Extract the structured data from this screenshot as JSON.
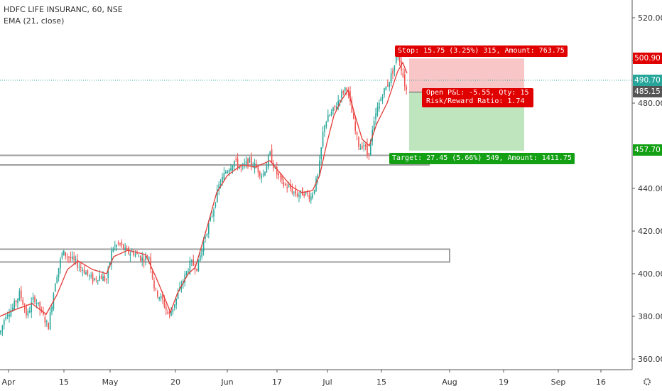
{
  "legend": {
    "symbol": "HDFC LIFE INSURANC, 60, NSE",
    "indicator": "EMA (21, close)"
  },
  "price_tags": {
    "stop": "500.90",
    "last_close": "490.70",
    "entry": "485.15",
    "target": "457.70"
  },
  "position_labels": {
    "stop": "Stop: 15.75 (3.25%) 315, Amount: 763.75",
    "pnl": "Open P&L: -5.55, Qty: 15",
    "rr": "Risk/Reward Ratio: 1.74",
    "target": "Target: 27.45 (5.66%) 549, Amount: 1411.75"
  },
  "colors": {
    "up": "#26a69a",
    "down": "#ef5350",
    "ema": "#e53935",
    "stop_zone": "#f8c6c6",
    "target_zone": "#bfe5bf",
    "label_red": "#e00000",
    "label_green": "#14a014",
    "dotted_line": "#26a69a"
  },
  "chart_data": {
    "type": "candlestick",
    "title": "HDFC LIFE INSURANC, 60, NSE",
    "ylim": [
      352,
      524
    ],
    "y_ticks": [
      360,
      380,
      400,
      420,
      440,
      480,
      500,
      520
    ],
    "x_tick_labels": [
      "Apr",
      "15",
      "May",
      "20",
      "Jun",
      "17",
      "Jul",
      "15",
      "Aug",
      "19",
      "Sep",
      "16"
    ],
    "grid": false,
    "ema_period": 21,
    "ema_path": [
      [
        0,
        380
      ],
      [
        20,
        383
      ],
      [
        45,
        386
      ],
      [
        65,
        381
      ],
      [
        80,
        390
      ],
      [
        95,
        402
      ],
      [
        110,
        406
      ],
      [
        130,
        402
      ],
      [
        150,
        400
      ],
      [
        160,
        408
      ],
      [
        180,
        411
      ],
      [
        205,
        409
      ],
      [
        220,
        398
      ],
      [
        235,
        386
      ],
      [
        240,
        382
      ],
      [
        250,
        391
      ],
      [
        265,
        400
      ],
      [
        275,
        403
      ],
      [
        290,
        420
      ],
      [
        305,
        438
      ],
      [
        320,
        446
      ],
      [
        340,
        451
      ],
      [
        360,
        450
      ],
      [
        380,
        453
      ],
      [
        395,
        447
      ],
      [
        410,
        441
      ],
      [
        425,
        438
      ],
      [
        440,
        439
      ],
      [
        450,
        446
      ],
      [
        460,
        461
      ],
      [
        470,
        474
      ],
      [
        480,
        481
      ],
      [
        490,
        486
      ],
      [
        500,
        474
      ],
      [
        510,
        463
      ],
      [
        520,
        460
      ],
      [
        530,
        470
      ],
      [
        545,
        480
      ],
      [
        560,
        495
      ],
      [
        567,
        499
      ],
      [
        573,
        494
      ]
    ],
    "price_path": [
      [
        0,
        372
      ],
      [
        8,
        381
      ],
      [
        18,
        384
      ],
      [
        28,
        391
      ],
      [
        38,
        380
      ],
      [
        48,
        389
      ],
      [
        58,
        382
      ],
      [
        68,
        375
      ],
      [
        78,
        397
      ],
      [
        88,
        410
      ],
      [
        100,
        407
      ],
      [
        110,
        404
      ],
      [
        120,
        401
      ],
      [
        130,
        397
      ],
      [
        140,
        399
      ],
      [
        150,
        397
      ],
      [
        158,
        412
      ],
      [
        168,
        414
      ],
      [
        178,
        410
      ],
      [
        188,
        410
      ],
      [
        200,
        407
      ],
      [
        210,
        408
      ],
      [
        218,
        392
      ],
      [
        228,
        388
      ],
      [
        238,
        380
      ],
      [
        248,
        388
      ],
      [
        258,
        397
      ],
      [
        268,
        405
      ],
      [
        278,
        403
      ],
      [
        288,
        417
      ],
      [
        298,
        427
      ],
      [
        308,
        441
      ],
      [
        318,
        448
      ],
      [
        330,
        453
      ],
      [
        340,
        449
      ],
      [
        350,
        453
      ],
      [
        360,
        450
      ],
      [
        370,
        446
      ],
      [
        380,
        456
      ],
      [
        388,
        448
      ],
      [
        398,
        442
      ],
      [
        408,
        440
      ],
      [
        418,
        437
      ],
      [
        428,
        438
      ],
      [
        438,
        436
      ],
      [
        448,
        446
      ],
      [
        456,
        470
      ],
      [
        464,
        474
      ],
      [
        472,
        478
      ],
      [
        480,
        484
      ],
      [
        488,
        488
      ],
      [
        494,
        478
      ],
      [
        500,
        467
      ],
      [
        506,
        459
      ],
      [
        512,
        461
      ],
      [
        518,
        455
      ],
      [
        524,
        466
      ],
      [
        530,
        476
      ],
      [
        538,
        484
      ],
      [
        546,
        489
      ],
      [
        554,
        496
      ],
      [
        560,
        504
      ],
      [
        566,
        495
      ],
      [
        571,
        487
      ],
      [
        574,
        485
      ]
    ],
    "horizontal_zones": [
      {
        "top": 455.5,
        "bottom": 451
      },
      {
        "top": 411.5,
        "bottom": 405.5
      }
    ],
    "position": {
      "entry": 485.15,
      "stop": 500.9,
      "target": 457.7,
      "last_close": 490.7,
      "qty": 15
    }
  }
}
